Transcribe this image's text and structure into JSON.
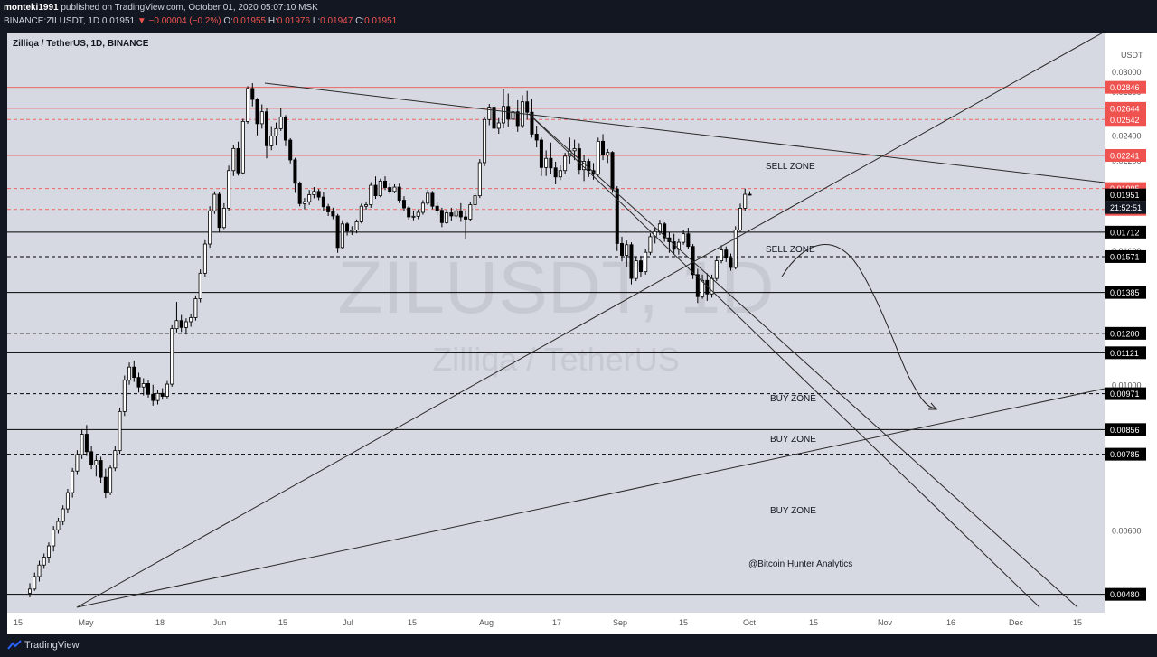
{
  "header": {
    "author": "monteki1991",
    "published": "published on TradingView.com, October 01, 2020 05:07:10 MSK",
    "symbol": "BINANCE:ZILUSDT, 1D",
    "last": "0.01951",
    "change": "▼ −0.00004 (−0.2%)",
    "o_label": "O:",
    "o": "0.01955",
    "h_label": "H:",
    "h": "0.01976",
    "l_label": "L:",
    "l": "0.01947",
    "c_label": "C:",
    "c": "0.01951"
  },
  "footer": {
    "brand": "TradingView"
  },
  "colors": {
    "background": "#d6d9e2",
    "axis_bg": "#ffffff",
    "red_line": "#ef5350",
    "black_line": "#000000",
    "up_candle": "#ffffff",
    "down_candle": "#000000",
    "label_red": "#ef5350",
    "label_black": "#000000",
    "label_dark": "#131722"
  },
  "chart_data": {
    "type": "candlestick",
    "title": "Zilliqa / TetherUS, 1D, BINANCE",
    "watermark_symbol": "ZILUSDT, 1D",
    "watermark_name": "Zilliqa / TetherUS",
    "yaxis_unit": "USDT",
    "y_scale": "log",
    "ylim": [
      0.0045,
      0.0345
    ],
    "y_ticks": [
      "0.03000",
      "0.02800",
      "0.02600",
      "0.02400",
      "0.02200",
      "0.01600",
      "0.01000",
      "0.00600"
    ],
    "x_ticks": [
      "15",
      "May",
      "18",
      "Jun",
      "15",
      "Jul",
      "15",
      "Aug",
      "17",
      "Sep",
      "15",
      "Oct",
      "15",
      "Nov",
      "16",
      "Dec",
      "15"
    ],
    "countdown": "21:52:51",
    "horizontal_levels": [
      {
        "price": "0.02846",
        "color": "red",
        "style": "solid"
      },
      {
        "price": "0.02644",
        "color": "red",
        "style": "solid"
      },
      {
        "price": "0.02542",
        "color": "red",
        "style": "dashed"
      },
      {
        "price": "0.02241",
        "color": "red",
        "style": "solid"
      },
      {
        "price": "0.01995",
        "color": "red",
        "style": "dashed"
      },
      {
        "price": "0.01951",
        "color": "black",
        "style": "last"
      },
      {
        "price": "0.01854",
        "color": "red",
        "style": "dashed"
      },
      {
        "price": "0.01712",
        "color": "black",
        "style": "solid"
      },
      {
        "price": "0.01571",
        "color": "black",
        "style": "dashed"
      },
      {
        "price": "0.01385",
        "color": "black",
        "style": "solid"
      },
      {
        "price": "0.01200",
        "color": "black",
        "style": "dashed"
      },
      {
        "price": "0.01121",
        "color": "black",
        "style": "solid"
      },
      {
        "price": "0.00971",
        "color": "black",
        "style": "dashed"
      },
      {
        "price": "0.00856",
        "color": "black",
        "style": "solid"
      },
      {
        "price": "0.00785",
        "color": "black",
        "style": "dashed"
      },
      {
        "price": "0.00480",
        "color": "black",
        "style": "solid"
      }
    ],
    "annotations": [
      "SELL ZONE",
      "SELL ZONE",
      "BUY ZONE",
      "BUY ZONE",
      "BUY ZONE",
      "@Bitcoin Hunter Analytics"
    ],
    "candles": [
      [
        0.00482,
        0.00499,
        0.00475,
        0.00489
      ],
      [
        0.00489,
        0.00518,
        0.00486,
        0.00511
      ],
      [
        0.00511,
        0.0054,
        0.00502,
        0.00532
      ],
      [
        0.00532,
        0.00554,
        0.00525,
        0.00547
      ],
      [
        0.00547,
        0.00576,
        0.00536,
        0.00569
      ],
      [
        0.00569,
        0.0061,
        0.00558,
        0.00602
      ],
      [
        0.00602,
        0.00628,
        0.00594,
        0.0062
      ],
      [
        0.0062,
        0.00656,
        0.00612,
        0.00648
      ],
      [
        0.00648,
        0.00695,
        0.00638,
        0.00686
      ],
      [
        0.00686,
        0.00748,
        0.00674,
        0.0074
      ],
      [
        0.0074,
        0.00796,
        0.0073,
        0.00784
      ],
      [
        0.00784,
        0.00855,
        0.00772,
        0.00842
      ],
      [
        0.00842,
        0.0087,
        0.0078,
        0.00792
      ],
      [
        0.00792,
        0.00808,
        0.00745,
        0.00756
      ],
      [
        0.00756,
        0.00781,
        0.00726,
        0.00768
      ],
      [
        0.00768,
        0.00778,
        0.00709,
        0.00724
      ],
      [
        0.00724,
        0.00746,
        0.00673,
        0.00686
      ],
      [
        0.00686,
        0.00756,
        0.0068,
        0.00748
      ],
      [
        0.00748,
        0.00808,
        0.0074,
        0.00795
      ],
      [
        0.00795,
        0.00925,
        0.00786,
        0.00912
      ],
      [
        0.00912,
        0.01035,
        0.00898,
        0.01018
      ],
      [
        0.01018,
        0.01083,
        0.01002,
        0.01066
      ],
      [
        0.01066,
        0.01091,
        0.01012,
        0.01028
      ],
      [
        0.01028,
        0.01045,
        0.00975,
        0.00994
      ],
      [
        0.00994,
        0.01025,
        0.00965,
        0.01006
      ],
      [
        0.01006,
        0.01018,
        0.00958,
        0.00969
      ],
      [
        0.00969,
        0.01002,
        0.00931,
        0.00948
      ],
      [
        0.00948,
        0.00985,
        0.00935,
        0.00972
      ],
      [
        0.00972,
        0.0099,
        0.00951,
        0.00962
      ],
      [
        0.00962,
        0.01015,
        0.00955,
        0.01004
      ],
      [
        0.01004,
        0.01235,
        0.00995,
        0.0122
      ],
      [
        0.0122,
        0.0134,
        0.01204,
        0.01255
      ],
      [
        0.01255,
        0.0128,
        0.01206,
        0.01225
      ],
      [
        0.01225,
        0.01265,
        0.01195,
        0.0125
      ],
      [
        0.0125,
        0.01285,
        0.01228,
        0.01268
      ],
      [
        0.01268,
        0.01371,
        0.01255,
        0.01355
      ],
      [
        0.01355,
        0.01502,
        0.01338,
        0.01482
      ],
      [
        0.01482,
        0.01664,
        0.01465,
        0.01642
      ],
      [
        0.01642,
        0.01875,
        0.01621,
        0.01845
      ],
      [
        0.01845,
        0.01975,
        0.01825,
        0.01955
      ],
      [
        0.01955,
        0.0197,
        0.01712,
        0.0174
      ],
      [
        0.0174,
        0.01895,
        0.0173,
        0.01862
      ],
      [
        0.01862,
        0.02162,
        0.01845,
        0.02125
      ],
      [
        0.02125,
        0.02322,
        0.02085,
        0.02296
      ],
      [
        0.02296,
        0.02352,
        0.02088,
        0.02108
      ],
      [
        0.02108,
        0.02548,
        0.02096,
        0.02525
      ],
      [
        0.02525,
        0.02858,
        0.02505,
        0.02835
      ],
      [
        0.02835,
        0.02888,
        0.02662,
        0.02728
      ],
      [
        0.02728,
        0.02742,
        0.02405,
        0.02505
      ],
      [
        0.02505,
        0.02681,
        0.02462,
        0.02612
      ],
      [
        0.02612,
        0.02646,
        0.02218,
        0.02318
      ],
      [
        0.02318,
        0.02484,
        0.02282,
        0.02398
      ],
      [
        0.02398,
        0.02515,
        0.02325,
        0.02462
      ],
      [
        0.02462,
        0.02645,
        0.02442,
        0.02565
      ],
      [
        0.02565,
        0.02582,
        0.02315,
        0.02365
      ],
      [
        0.02365,
        0.02381,
        0.0218,
        0.02206
      ],
      [
        0.02206,
        0.02222,
        0.01965,
        0.02032
      ],
      [
        0.02032,
        0.02045,
        0.01874,
        0.01892
      ],
      [
        0.01892,
        0.0193,
        0.01855,
        0.01905
      ],
      [
        0.01905,
        0.01985,
        0.01883,
        0.01952
      ],
      [
        0.01952,
        0.02005,
        0.01928,
        0.01975
      ],
      [
        0.01975,
        0.01992,
        0.01915,
        0.01936
      ],
      [
        0.01936,
        0.0197,
        0.01845,
        0.01872
      ],
      [
        0.01872,
        0.0189,
        0.01812,
        0.01838
      ],
      [
        0.01838,
        0.01865,
        0.01792,
        0.01812
      ],
      [
        0.01812,
        0.01825,
        0.01592,
        0.01622
      ],
      [
        0.01622,
        0.01785,
        0.01615,
        0.01762
      ],
      [
        0.01762,
        0.01772,
        0.01692,
        0.01718
      ],
      [
        0.01718,
        0.01748,
        0.01695,
        0.01725
      ],
      [
        0.01725,
        0.0179,
        0.01705,
        0.01775
      ],
      [
        0.01775,
        0.01892,
        0.01765,
        0.01875
      ],
      [
        0.01875,
        0.01902,
        0.01852,
        0.01885
      ],
      [
        0.01885,
        0.0204,
        0.01865,
        0.02018
      ],
      [
        0.02018,
        0.02082,
        0.01924,
        0.01945
      ],
      [
        0.01945,
        0.02065,
        0.01935,
        0.02048
      ],
      [
        0.02048,
        0.02082,
        0.01985,
        0.02002
      ],
      [
        0.02002,
        0.02035,
        0.01958,
        0.01975
      ],
      [
        0.01975,
        0.02025,
        0.01962,
        0.02005
      ],
      [
        0.02005,
        0.0203,
        0.01895,
        0.01915
      ],
      [
        0.01915,
        0.01942,
        0.01845,
        0.01864
      ],
      [
        0.01864,
        0.01876,
        0.01788,
        0.01806
      ],
      [
        0.01806,
        0.01842,
        0.01785,
        0.0181
      ],
      [
        0.0181,
        0.01855,
        0.01792,
        0.01835
      ],
      [
        0.01835,
        0.01915,
        0.0182,
        0.01895
      ],
      [
        0.01895,
        0.01985,
        0.01882,
        0.01962
      ],
      [
        0.01962,
        0.01978,
        0.01856,
        0.01875
      ],
      [
        0.01875,
        0.01902,
        0.01815,
        0.01848
      ],
      [
        0.01848,
        0.01865,
        0.01742,
        0.0177
      ],
      [
        0.0177,
        0.01852,
        0.01762,
        0.01832
      ],
      [
        0.01832,
        0.01865,
        0.01782,
        0.01812
      ],
      [
        0.01812,
        0.01865,
        0.01798,
        0.01845
      ],
      [
        0.01845,
        0.01895,
        0.01775,
        0.01806
      ],
      [
        0.01806,
        0.01848,
        0.01672,
        0.01792
      ],
      [
        0.01792,
        0.01902,
        0.01778,
        0.01885
      ],
      [
        0.01885,
        0.0196,
        0.01858,
        0.01945
      ],
      [
        0.01945,
        0.02212,
        0.0193,
        0.02185
      ],
      [
        0.02185,
        0.02565,
        0.02158,
        0.02542
      ],
      [
        0.02542,
        0.02685,
        0.02492,
        0.02655
      ],
      [
        0.02655,
        0.0267,
        0.02395,
        0.02465
      ],
      [
        0.02465,
        0.02555,
        0.02418,
        0.02512
      ],
      [
        0.02512,
        0.0283,
        0.02465,
        0.02662
      ],
      [
        0.02662,
        0.02785,
        0.02478,
        0.02545
      ],
      [
        0.02545,
        0.0274,
        0.02455,
        0.02612
      ],
      [
        0.02612,
        0.0272,
        0.02435,
        0.02488
      ],
      [
        0.02488,
        0.02768,
        0.02465,
        0.02705
      ],
      [
        0.02705,
        0.0281,
        0.02542,
        0.02608
      ],
      [
        0.02608,
        0.02732,
        0.02385,
        0.02415
      ],
      [
        0.02415,
        0.02488,
        0.02305,
        0.02365
      ],
      [
        0.02365,
        0.02386,
        0.02085,
        0.02148
      ],
      [
        0.02148,
        0.02281,
        0.02085,
        0.02218
      ],
      [
        0.02218,
        0.02345,
        0.02102,
        0.02145
      ],
      [
        0.02145,
        0.02192,
        0.02025,
        0.02078
      ],
      [
        0.02078,
        0.02165,
        0.02055,
        0.02125
      ],
      [
        0.02125,
        0.02262,
        0.02098,
        0.02235
      ],
      [
        0.02235,
        0.02385,
        0.02175,
        0.02278
      ],
      [
        0.02278,
        0.02368,
        0.02205,
        0.02295
      ],
      [
        0.02295,
        0.0234,
        0.02095,
        0.02132
      ],
      [
        0.02132,
        0.02248,
        0.02048,
        0.02195
      ],
      [
        0.02195,
        0.02215,
        0.02078,
        0.02125
      ],
      [
        0.02125,
        0.02182,
        0.02058,
        0.02098
      ],
      [
        0.02098,
        0.02385,
        0.02085,
        0.02355
      ],
      [
        0.02355,
        0.02415,
        0.02205,
        0.02245
      ],
      [
        0.02245,
        0.02292,
        0.02182,
        0.02265
      ],
      [
        0.02265,
        0.02275,
        0.01965,
        0.01992
      ],
      [
        0.01992,
        0.02012,
        0.01602,
        0.01645
      ],
      [
        0.01645,
        0.01685,
        0.01545,
        0.01578
      ],
      [
        0.01578,
        0.01662,
        0.01512,
        0.01638
      ],
      [
        0.01638,
        0.01652,
        0.01425,
        0.01455
      ],
      [
        0.01455,
        0.01572,
        0.01442,
        0.01548
      ],
      [
        0.01548,
        0.01575,
        0.01465,
        0.0149
      ],
      [
        0.0149,
        0.01612,
        0.01475,
        0.01595
      ],
      [
        0.01595,
        0.01705,
        0.0158,
        0.01685
      ],
      [
        0.01685,
        0.0174,
        0.01645,
        0.01715
      ],
      [
        0.01715,
        0.01788,
        0.01695,
        0.01762
      ],
      [
        0.01762,
        0.01772,
        0.01655,
        0.01678
      ],
      [
        0.01678,
        0.01712,
        0.01592,
        0.01655
      ],
      [
        0.01655,
        0.01702,
        0.01585,
        0.01612
      ],
      [
        0.01612,
        0.01675,
        0.01582,
        0.01652
      ],
      [
        0.01652,
        0.01725,
        0.01638,
        0.01702
      ],
      [
        0.01702,
        0.01738,
        0.01615,
        0.01628
      ],
      [
        0.01628,
        0.01642,
        0.01452,
        0.01475
      ],
      [
        0.01475,
        0.01505,
        0.01335,
        0.01365
      ],
      [
        0.01365,
        0.01475,
        0.01355,
        0.01445
      ],
      [
        0.01445,
        0.01482,
        0.01345,
        0.01378
      ],
      [
        0.01378,
        0.01475,
        0.0136,
        0.01455
      ],
      [
        0.01455,
        0.01575,
        0.01442,
        0.01548
      ],
      [
        0.01548,
        0.01635,
        0.01535,
        0.01608
      ],
      [
        0.01608,
        0.01628,
        0.01542,
        0.01565
      ],
      [
        0.01565,
        0.01588,
        0.01495,
        0.01512
      ],
      [
        0.01512,
        0.01748,
        0.01502,
        0.01725
      ],
      [
        0.01725,
        0.01892,
        0.01712,
        0.01862
      ],
      [
        0.01862,
        0.01995,
        0.01845,
        0.01955
      ],
      [
        0.01955,
        0.01976,
        0.01947,
        0.01951
      ]
    ],
    "trendlines": "descending and ascending support/resistance lines"
  }
}
